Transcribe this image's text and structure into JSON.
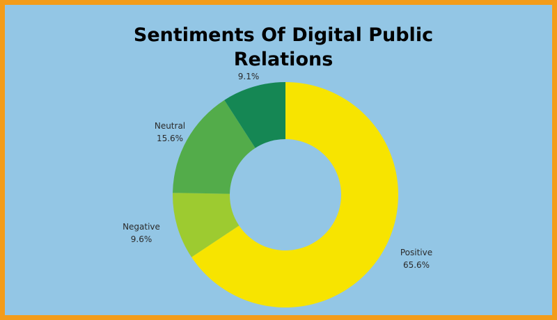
{
  "colors": {
    "border": "#f39c1a",
    "background": "#93c6e5"
  },
  "chart_data": {
    "type": "pie",
    "variant": "donut",
    "title_lines": [
      "Sentiments Of Digital Public",
      "Relations"
    ],
    "legend": "none",
    "slices": [
      {
        "label": "Positive",
        "value": 65.6,
        "value_label": "65.6%",
        "color": "#f7e400"
      },
      {
        "label": "Negative",
        "value": 9.6,
        "value_label": "9.6%",
        "color": "#9dcb30"
      },
      {
        "label": "Neutral",
        "value": 15.6,
        "value_label": "15.6%",
        "color": "#53ac4a"
      },
      {
        "label": "",
        "value": 9.1,
        "value_label": "9.1%",
        "color": "#158754"
      }
    ]
  }
}
